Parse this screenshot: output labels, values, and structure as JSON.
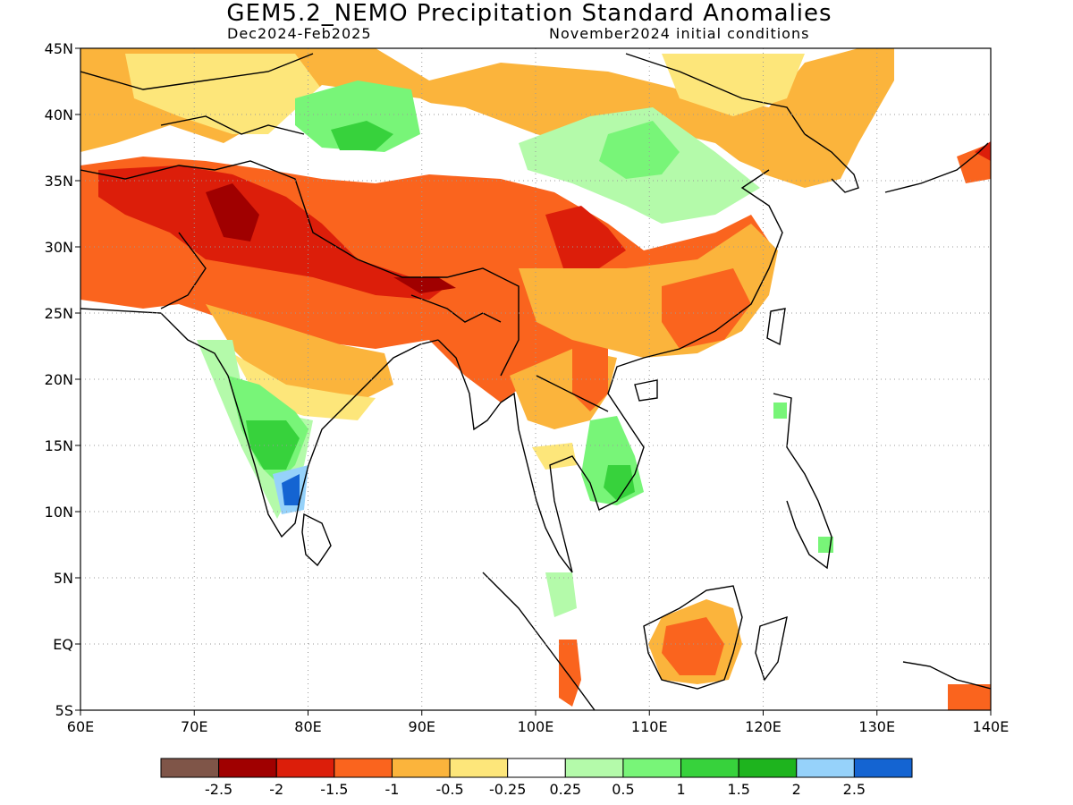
{
  "header": {
    "title": "GEM5.2_NEMO Precipitation Standard Anomalies",
    "period": "Dec2024-Feb2025",
    "initial_conditions": "November2024 initial conditions"
  },
  "map": {
    "lon_range": [
      60,
      140
    ],
    "lat_range": [
      -5,
      45
    ],
    "lon_ticks": [
      {
        "value": 60,
        "label": "60E"
      },
      {
        "value": 70,
        "label": "70E"
      },
      {
        "value": 80,
        "label": "80E"
      },
      {
        "value": 90,
        "label": "90E"
      },
      {
        "value": 100,
        "label": "100E"
      },
      {
        "value": 110,
        "label": "110E"
      },
      {
        "value": 120,
        "label": "120E"
      },
      {
        "value": 130,
        "label": "130E"
      },
      {
        "value": 140,
        "label": "140E"
      }
    ],
    "lat_ticks": [
      {
        "value": 45,
        "label": "45N"
      },
      {
        "value": 40,
        "label": "40N"
      },
      {
        "value": 35,
        "label": "35N"
      },
      {
        "value": 30,
        "label": "30N"
      },
      {
        "value": 25,
        "label": "25N"
      },
      {
        "value": 20,
        "label": "20N"
      },
      {
        "value": 15,
        "label": "15N"
      },
      {
        "value": 10,
        "label": "10N"
      },
      {
        "value": 5,
        "label": "5N"
      },
      {
        "value": 0,
        "label": "EQ"
      },
      {
        "value": -5,
        "label": "5S"
      }
    ]
  },
  "colorbar": {
    "colors": [
      "#7f5548",
      "#a00000",
      "#dc1e0a",
      "#fa641e",
      "#fbb43c",
      "#fde67a",
      "#ffffff",
      "#b4faaa",
      "#78f578",
      "#37d23c",
      "#1eb41e",
      "#96d2fa",
      "#1464d2"
    ],
    "labels": [
      "-2.5",
      "-2",
      "-1.5",
      "-1",
      "-0.5",
      "-0.25",
      "0.25",
      "0.5",
      "1",
      "1.5",
      "2",
      "2.5"
    ]
  }
}
